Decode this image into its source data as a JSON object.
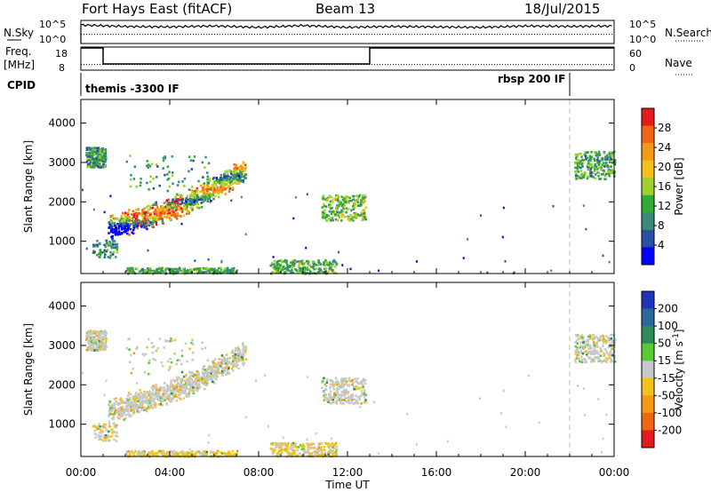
{
  "header": {
    "station": "Fort Hays East (fitACF)",
    "beam": "Beam 13",
    "date": "18/Jul/2015"
  },
  "colors": {
    "power_scale": [
      "#0000ff",
      "#2a4fa8",
      "#3a8a7a",
      "#33aa33",
      "#9fd12e",
      "#f2c21a",
      "#f59a14",
      "#f06614",
      "#e41a1c"
    ],
    "velocity_scale": [
      "#2233bb",
      "#2a6a9a",
      "#2e8a5a",
      "#55cc33",
      "#c8c8c8",
      "#f2c21a",
      "#f59a14",
      "#ee6611",
      "#e41a1c"
    ]
  },
  "chart_data": [
    {
      "type": "line",
      "name_panel": "noise",
      "left_label": "N.Sky",
      "right_label": "N.Search",
      "left_ticks": [
        "10^5",
        "10^0"
      ],
      "right_ticks": [
        "10^5",
        "10^0"
      ],
      "series": [
        {
          "name": "N.Sky",
          "style": "solid",
          "x": [
            0,
            2,
            4,
            6,
            8,
            10,
            12,
            14,
            16,
            18,
            20,
            22,
            24
          ],
          "values": [
            4.0,
            3.7,
            3.6,
            3.8,
            3.5,
            3.9,
            3.5,
            3.7,
            3.6,
            3.5,
            3.8,
            3.7,
            3.8
          ]
        },
        {
          "name": "N.Search",
          "style": "dotted",
          "x": [
            0,
            4,
            8,
            12,
            16,
            20,
            24
          ],
          "values": [
            2.0,
            2.0,
            2.0,
            2.0,
            2.0,
            2.0,
            2.0
          ]
        }
      ]
    },
    {
      "type": "line",
      "name_panel": "frequency",
      "left_label": "Freq.",
      "left_unit": "[MHz]",
      "right_label": "Nave",
      "left_ticks": [
        "18",
        "8"
      ],
      "right_ticks": [
        "60",
        "0"
      ],
      "series": [
        {
          "name": "Freq",
          "style": "solid",
          "x": [
            0,
            1,
            1,
            13,
            13,
            24
          ],
          "values": [
            18,
            18,
            10.5,
            10.5,
            18,
            18
          ]
        },
        {
          "name": "Nave",
          "style": "dotted",
          "x": [
            0,
            24
          ],
          "values": [
            16,
            16
          ]
        }
      ]
    },
    {
      "type": "text",
      "name_panel": "cpid",
      "left_label": "CPID",
      "segments": [
        {
          "start": 0,
          "end": 22,
          "label": "themis -3300 IF"
        },
        {
          "start": 22,
          "end": 24,
          "label": "rbsp 200 IF"
        }
      ]
    },
    {
      "type": "heatmap",
      "name_panel": "power",
      "ylabel": "Slant Range [km]",
      "xlabel": "Time UT",
      "ylim": [
        180,
        4600
      ],
      "xlim": [
        0,
        24
      ],
      "yticks": [
        1000,
        2000,
        3000,
        4000
      ],
      "xticks": [
        "00:00",
        "04:00",
        "08:00",
        "12:00",
        "16:00",
        "20:00",
        "00:00"
      ],
      "colorbar_label": "Power [dB]",
      "colorbar_ticks": [
        "4",
        "8",
        "12",
        "16",
        "20",
        "24",
        "28"
      ],
      "regions": [
        {
          "t": [
            1.2,
            7.4
          ],
          "r": [
            1250,
            2700
          ],
          "shape": "arc",
          "level": 0.55
        },
        {
          "t": [
            0.2,
            1.1
          ],
          "r": [
            2900,
            3400
          ],
          "shape": "blob",
          "level": 0.25
        },
        {
          "t": [
            2.0,
            5.8
          ],
          "r": [
            2300,
            3200
          ],
          "shape": "sparse",
          "level": 0.3
        },
        {
          "t": [
            10.8,
            12.8
          ],
          "r": [
            1550,
            2200
          ],
          "shape": "blob",
          "level": 0.4
        },
        {
          "t": [
            8.5,
            11.5
          ],
          "r": [
            200,
            550
          ],
          "shape": "strip",
          "level": 0.35
        },
        {
          "t": [
            2.0,
            7.0
          ],
          "r": [
            200,
            350
          ],
          "shape": "strip",
          "level": 0.3
        },
        {
          "t": [
            0.5,
            1.6
          ],
          "r": [
            600,
            1050
          ],
          "shape": "sparse",
          "level": 0.2
        },
        {
          "t": [
            22.2,
            24.0
          ],
          "r": [
            2600,
            3300
          ],
          "shape": "blob",
          "level": 0.3
        }
      ]
    },
    {
      "type": "heatmap",
      "name_panel": "velocity",
      "ylabel": "Slant Range [km]",
      "xlabel": "Time UT",
      "ylim": [
        180,
        4600
      ],
      "xlim": [
        0,
        24
      ],
      "yticks": [
        1000,
        2000,
        3000,
        4000
      ],
      "xticks": [
        "00:00",
        "04:00",
        "08:00",
        "12:00",
        "16:00",
        "20:00",
        "00:00"
      ],
      "colorbar_label": "Velocity [m s^-1]",
      "colorbar_ticks": [
        "200",
        "100",
        "50",
        "15",
        "-15",
        "-50",
        "-100",
        "-200"
      ],
      "regions": [
        {
          "t": [
            1.2,
            7.4
          ],
          "r": [
            1250,
            2700
          ],
          "shape": "arc",
          "level": 0.55
        },
        {
          "t": [
            0.2,
            1.1
          ],
          "r": [
            2900,
            3400
          ],
          "shape": "blob",
          "level": 0.5
        },
        {
          "t": [
            2.0,
            5.8
          ],
          "r": [
            2300,
            3200
          ],
          "shape": "sparse",
          "level": 0.5
        },
        {
          "t": [
            10.8,
            12.8
          ],
          "r": [
            1550,
            2200
          ],
          "shape": "blob",
          "level": 0.4
        },
        {
          "t": [
            8.5,
            11.5
          ],
          "r": [
            200,
            550
          ],
          "shape": "strip",
          "level": 0.35
        },
        {
          "t": [
            2.0,
            7.0
          ],
          "r": [
            200,
            350
          ],
          "shape": "strip",
          "level": 0.35
        },
        {
          "t": [
            0.5,
            1.6
          ],
          "r": [
            600,
            1050
          ],
          "shape": "sparse",
          "level": 0.5
        },
        {
          "t": [
            22.2,
            24.0
          ],
          "r": [
            2600,
            3300
          ],
          "shape": "blob",
          "level": 0.5
        }
      ]
    }
  ]
}
